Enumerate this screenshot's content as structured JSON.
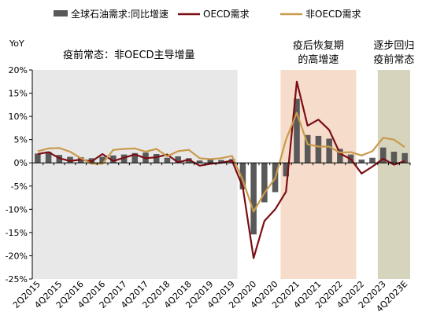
{
  "chart_data": {
    "type": "bar+line",
    "y_unit_label": "YoY",
    "ylim": [
      -25,
      20
    ],
    "yticks": [
      "20%",
      "15%",
      "10%",
      "5%",
      "0%",
      "-5%",
      "-10%",
      "-15%",
      "-20%",
      "-25%"
    ],
    "ytick_values": [
      20,
      15,
      10,
      5,
      0,
      -5,
      -10,
      -15,
      -20,
      -25
    ],
    "xtick_labels": [
      "2Q2015",
      "4Q2015",
      "2Q2016",
      "4Q2016",
      "2Q2017",
      "4Q2017",
      "2Q2018",
      "4Q2018",
      "2Q2019",
      "4Q2019",
      "2Q2020",
      "4Q2020",
      "2Q2021",
      "4Q2021",
      "2Q2022",
      "4Q2022",
      "2Q2023",
      "4Q2023E"
    ],
    "categories": [
      "2Q2015",
      "3Q2015",
      "4Q2015",
      "1Q2016",
      "2Q2016",
      "3Q2016",
      "4Q2016",
      "1Q2017",
      "2Q2017",
      "3Q2017",
      "4Q2017",
      "1Q2018",
      "2Q2018",
      "3Q2018",
      "4Q2018",
      "1Q2019",
      "2Q2019",
      "3Q2019",
      "4Q2019",
      "1Q2020",
      "2Q2020",
      "3Q2020",
      "4Q2020",
      "1Q2021",
      "2Q2021",
      "3Q2021",
      "4Q2021",
      "1Q2022",
      "2Q2022",
      "3Q2022",
      "4Q2022",
      "1Q2023",
      "2Q2023",
      "3Q2023",
      "4Q2023E"
    ],
    "series": [
      {
        "name": "全球石油需求:同比增速",
        "type": "bar",
        "color": "#595959",
        "values": [
          2.0,
          2.4,
          1.7,
          1.3,
          1.2,
          1.0,
          1.3,
          1.6,
          1.8,
          2.1,
          2.2,
          1.9,
          1.1,
          1.4,
          1.0,
          0.5,
          0.8,
          0.6,
          0.8,
          -5.7,
          -15.4,
          -8.5,
          -6.3,
          -2.9,
          13.8,
          6.0,
          5.8,
          5.2,
          3.0,
          1.8,
          0.7,
          1.1,
          3.3,
          2.4,
          2.1
        ]
      },
      {
        "name": "OECD需求",
        "type": "line",
        "color": "#7b0e14",
        "values": [
          1.9,
          2.3,
          1.0,
          0.4,
          0.7,
          0.3,
          1.9,
          0.4,
          1.1,
          1.8,
          1.0,
          1.2,
          1.8,
          0.1,
          0.7,
          -0.6,
          -0.2,
          0.0,
          0.5,
          -5.2,
          -20.5,
          -12.5,
          -10.0,
          -6.2,
          17.5,
          8.0,
          9.3,
          7.1,
          2.0,
          0.8,
          -2.3,
          -0.8,
          0.9,
          -0.4,
          0.4
        ]
      },
      {
        "name": "非OECD需求",
        "type": "line",
        "color": "#c99a4b",
        "values": [
          2.5,
          3.1,
          3.2,
          2.4,
          1.0,
          -0.2,
          -0.2,
          2.8,
          3.0,
          3.1,
          2.4,
          3.0,
          1.4,
          2.5,
          2.8,
          1.0,
          0.8,
          1.0,
          1.5,
          -3.7,
          -10.5,
          -6.5,
          -3.3,
          5.0,
          10.8,
          4.0,
          3.5,
          3.5,
          2.2,
          2.3,
          1.6,
          2.5,
          5.4,
          5.0,
          3.4
        ]
      }
    ],
    "shaded_regions": [
      {
        "label": "疫前常态：非OECD主导增量",
        "from": "2Q2015",
        "to": "4Q2019",
        "color": "#e8e8e8"
      },
      {
        "label_line1": "疫后恢复期",
        "label_line2": "的高增速",
        "from": "1Q2021",
        "to": "3Q2022",
        "color": "#f6dccb"
      },
      {
        "label_line1": "逐步回归",
        "label_line2": "疫前常态",
        "from": "2Q2023",
        "to": "4Q2023E",
        "color": "#d6d4bd"
      }
    ],
    "grid": false,
    "legend_position": "top"
  }
}
